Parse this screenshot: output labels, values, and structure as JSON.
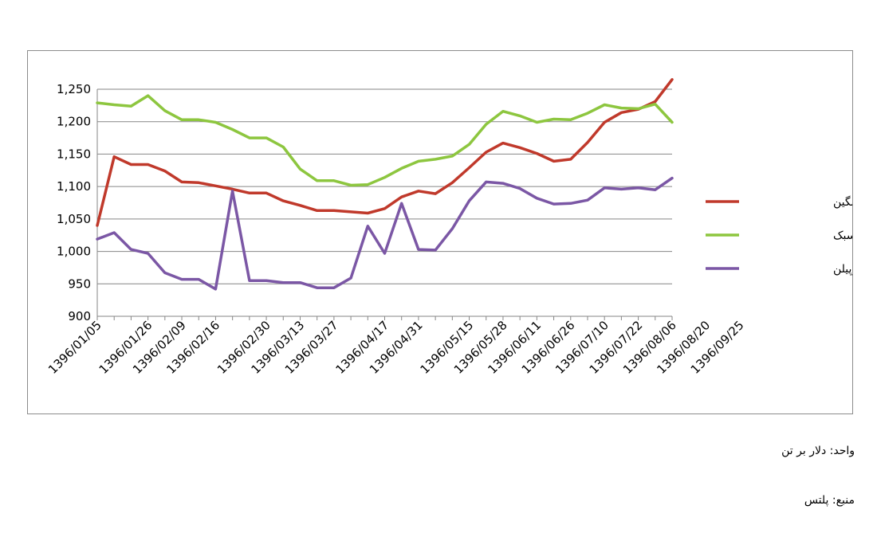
{
  "chart_data": {
    "type": "line",
    "title": "",
    "xlabel": "",
    "ylabel": "",
    "ylim": [
      900,
      1250
    ],
    "yticks": [
      900,
      950,
      1000,
      1050,
      1100,
      1150,
      1200,
      1250
    ],
    "ytick_labels": [
      "900",
      "950",
      "1,000",
      "1,050",
      "1,100",
      "1,150",
      "1,200",
      "1,250"
    ],
    "grid": true,
    "legend_position": "right",
    "x": [
      "1396/01/05",
      "1396/01/12",
      "1396/01/19",
      "1396/01/26",
      "1396/02/02",
      "1396/02/09",
      "1396/02/12",
      "1396/02/16",
      "1396/02/23",
      "1396/02/26",
      "1396/02/30",
      "1396/03/06",
      "1396/03/13",
      "1396/03/20",
      "1396/03/27",
      "1396/04/03",
      "1396/04/10",
      "1396/04/17",
      "1396/04/24",
      "1396/04/31",
      "1396/05/04",
      "1396/05/08",
      "1396/05/15",
      "1396/05/22",
      "1396/05/28",
      "1396/06/04",
      "1396/06/11",
      "1396/06/18",
      "1396/06/26",
      "1396/07/03",
      "1396/07/10",
      "1396/07/17",
      "1396/07/22",
      "1396/07/29",
      "1396/08/06",
      "1396/08/13",
      "1396/08/20",
      "1396/08/27",
      "1396/09/25"
    ],
    "x_tick_labels": [
      "1396/01/05",
      "1396/01/26",
      "1396/02/09",
      "1396/02/16",
      "1396/02/30",
      "1396/03/13",
      "1396/03/27",
      "1396/04/17",
      "1396/04/31",
      "1396/05/15",
      "1396/05/28",
      "1396/06/11",
      "1396/06/26",
      "1396/07/10",
      "1396/07/22",
      "1396/08/06",
      "1396/08/20",
      "1396/09/25"
    ],
    "series": [
      {
        "name": "پلی اتیلن سنگین",
        "color": "#c0392b",
        "values": [
          1040,
          1146,
          1134,
          1134,
          1124,
          1107,
          1106,
          1101,
          1096,
          1090,
          1090,
          1078,
          1071,
          1063,
          1063,
          1061,
          1059,
          1066,
          1084,
          1093,
          1089,
          1106,
          1129,
          1153,
          1167,
          1160,
          1151,
          1139,
          1142,
          1168,
          1199,
          1214,
          1219,
          1231,
          1265,
          null,
          null,
          null,
          null
        ]
      },
      {
        "name": "پلی اتیلن سبک",
        "color": "#8dc63f",
        "values": [
          1229,
          1226,
          1224,
          1240,
          1217,
          1203,
          1203,
          1199,
          1188,
          1175,
          1175,
          1161,
          1127,
          1109,
          1109,
          1102,
          1103,
          1114,
          1128,
          1139,
          1142,
          1147,
          1165,
          1196,
          1216,
          1209,
          1199,
          1204,
          1203,
          1213,
          1226,
          1221,
          1220,
          1227,
          1199,
          null,
          null,
          null,
          null
        ]
      },
      {
        "name": "پلی پروپیلن",
        "color": "#7b57a5",
        "values": [
          1019,
          1029,
          1003,
          997,
          967,
          957,
          957,
          942,
          1093,
          955,
          955,
          952,
          952,
          944,
          944,
          959,
          1039,
          997,
          1074,
          1003,
          1002,
          1035,
          1078,
          1107,
          1105,
          1097,
          1082,
          1073,
          1074,
          1079,
          1098,
          1096,
          1098,
          1095,
          1113,
          null,
          null,
          null,
          null
        ]
      }
    ]
  },
  "notes": {
    "unit": "واحد: دلار بر تن",
    "source": "منبع: پلتس"
  }
}
